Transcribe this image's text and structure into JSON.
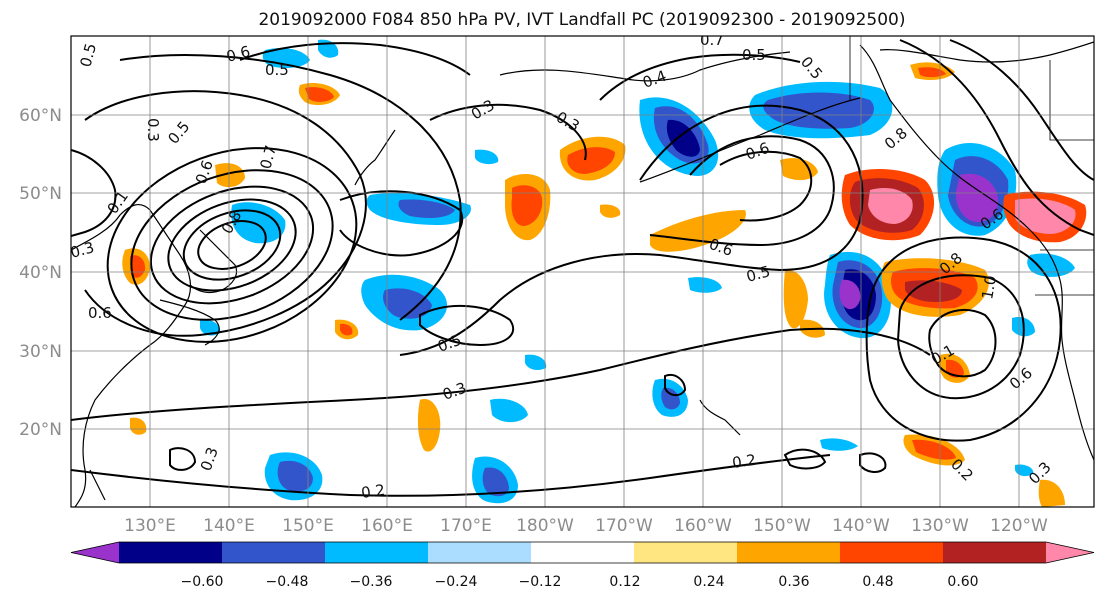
{
  "title": "2019092000 F084 850 hPa PV, IVT Landfall PC (2019092300 - 2019092500)",
  "map": {
    "lat_labels": [
      "60°N",
      "50°N",
      "40°N",
      "30°N",
      "20°N"
    ],
    "lon_labels": [
      "130°E",
      "140°E",
      "150°E",
      "160°E",
      "170°E",
      "180°W",
      "170°W",
      "160°W",
      "150°W",
      "140°W",
      "130°W",
      "120°W"
    ],
    "contour_labels": [
      "0.5",
      "0.6",
      "0.5",
      "0.7",
      "0.5",
      "0.5",
      "0.4",
      "0.3",
      "0.3",
      "0.3",
      "0.5",
      "0.6",
      "0.7",
      "0.8",
      "0.3",
      "0.1",
      "0.6",
      "0.5",
      "0.6",
      "0.5",
      "0.3",
      "0.2",
      "0.2",
      "0.3",
      "0.6",
      "0.8",
      "0.6",
      "1.0",
      "0.2",
      "0.1",
      "0.3",
      "0.6",
      "0.8"
    ]
  },
  "colorbar": {
    "ticks": [
      "−0.60",
      "−0.48",
      "−0.36",
      "−0.24",
      "−0.12",
      "0.12",
      "0.24",
      "0.36",
      "0.48",
      "0.60"
    ],
    "colors": [
      "#9933cc",
      "#000088",
      "#3355cc",
      "#00bbff",
      "#aaddff",
      "#ffffff",
      "#ffe680",
      "#ffa500",
      "#ff4500",
      "#b22222",
      "#ff88aa"
    ]
  }
}
